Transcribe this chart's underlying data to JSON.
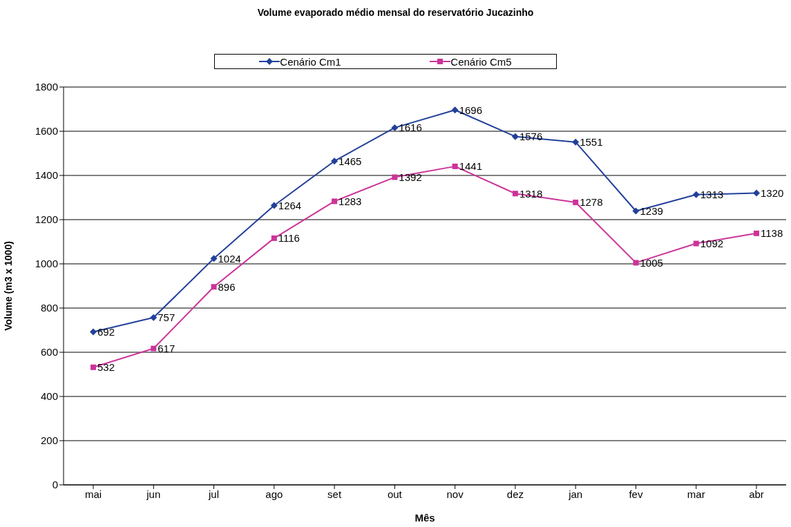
{
  "chart_data": {
    "type": "line",
    "title": "Volume evaporado médio mensal do reservatório Jucazinho",
    "xlabel": "Mês",
    "ylabel": "Volume (m3 x 1000)",
    "categories": [
      "mai",
      "jun",
      "jul",
      "ago",
      "set",
      "out",
      "nov",
      "dez",
      "jan",
      "fev",
      "mar",
      "abr"
    ],
    "series": [
      {
        "name": "Cenário Cm1",
        "color": "#22409a",
        "marker": "diamond",
        "values": [
          692,
          757,
          1024,
          1264,
          1465,
          1616,
          1696,
          1576,
          1551,
          1239,
          1313,
          1320
        ]
      },
      {
        "name": "Cenário Cm5",
        "color": "#cc3399",
        "marker": "square",
        "values": [
          532,
          617,
          896,
          1116,
          1283,
          1392,
          1441,
          1318,
          1278,
          1005,
          1092,
          1138
        ]
      }
    ],
    "ylim": [
      0,
      1800
    ],
    "yticks": [
      0,
      200,
      400,
      600,
      800,
      1000,
      1200,
      1400,
      1600,
      1800
    ],
    "grid": "y",
    "legend": "top",
    "data_labels": true
  }
}
